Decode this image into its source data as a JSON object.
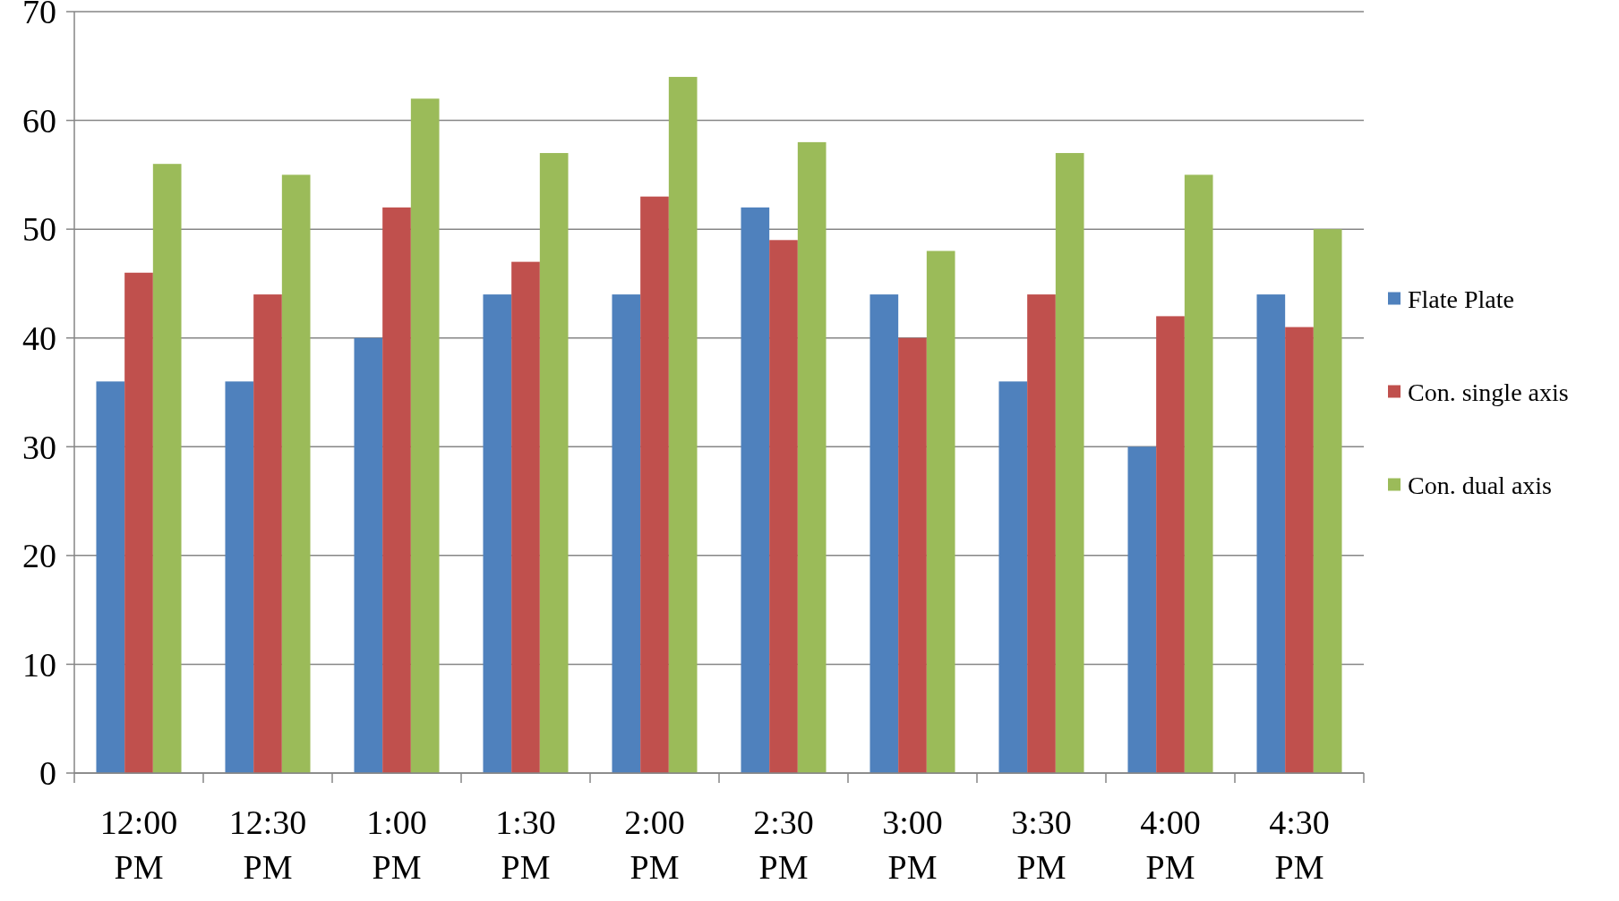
{
  "chart_data": {
    "type": "bar",
    "categories": [
      "12:00 PM",
      "12:30 PM",
      "1:00 PM",
      "1:30 PM",
      "2:00 PM",
      "2:30 PM",
      "3:00 PM",
      "3:30 PM",
      "4:00 PM",
      "4:30 PM"
    ],
    "series": [
      {
        "name": "Flate Plate",
        "color": "#4f81bd",
        "values": [
          36,
          36,
          40,
          44,
          44,
          52,
          44,
          36,
          30,
          44
        ]
      },
      {
        "name": "Con. single axis",
        "color": "#c0504d",
        "values": [
          46,
          44,
          52,
          47,
          53,
          49,
          40,
          44,
          42,
          41
        ]
      },
      {
        "name": "Con. dual axis",
        "color": "#9bbb59",
        "values": [
          56,
          55,
          62,
          57,
          64,
          58,
          48,
          57,
          55,
          50
        ]
      }
    ],
    "ylim": [
      0,
      70
    ],
    "yticks": [
      0,
      10,
      20,
      30,
      40,
      50,
      60,
      70
    ],
    "grid": "y",
    "legend": "right"
  }
}
